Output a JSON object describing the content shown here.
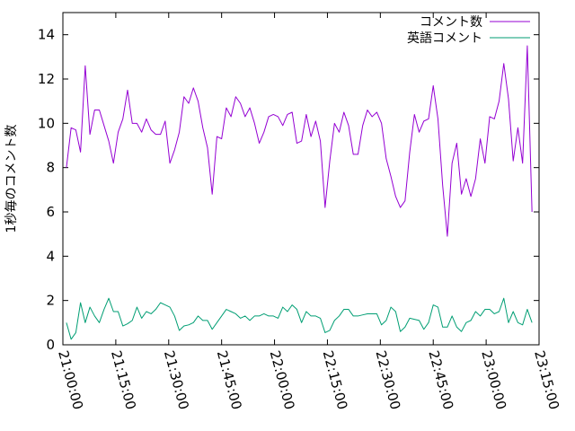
{
  "chart_data": {
    "type": "line",
    "ylabel": "1秒毎のコメント数",
    "ylim": [
      0,
      15
    ],
    "yticks": [
      "0",
      "2",
      "4",
      "6",
      "8",
      "10",
      "12",
      "14"
    ],
    "xlim": [
      "21:00:00",
      "23:15:00"
    ],
    "xticks": [
      "21:00:00",
      "21:15:00",
      "21:30:00",
      "21:45:00",
      "22:00:00",
      "22:15:00",
      "22:30:00",
      "22:45:00",
      "23:00:00",
      "23:15:00"
    ],
    "legend_position": "top-right",
    "series": [
      {
        "name": "コメント数",
        "color": "#9400d3",
        "values": [
          8.0,
          9.8,
          9.7,
          8.7,
          12.6,
          9.5,
          10.6,
          10.6,
          9.9,
          9.2,
          8.2,
          9.6,
          10.2,
          11.5,
          10.0,
          10.0,
          9.6,
          10.2,
          9.7,
          9.5,
          9.5,
          10.1,
          8.2,
          8.8,
          9.6,
          11.2,
          10.9,
          11.6,
          11.0,
          9.8,
          8.9,
          6.8,
          9.4,
          9.3,
          10.7,
          10.3,
          11.2,
          10.9,
          10.3,
          10.7,
          10.0,
          9.1,
          9.6,
          10.3,
          10.4,
          10.3,
          9.9,
          10.4,
          10.5,
          9.1,
          9.2,
          10.4,
          9.4,
          10.1,
          9.2,
          6.2,
          8.3,
          10.0,
          9.6,
          10.5,
          9.9,
          8.6,
          8.6,
          9.9,
          10.6,
          10.3,
          10.5,
          10.0,
          8.4,
          7.6,
          6.7,
          6.2,
          6.5,
          8.7,
          10.4,
          9.6,
          10.1,
          10.2,
          11.7,
          10.2,
          7.2,
          4.9,
          8.2,
          9.1,
          6.8,
          7.5,
          6.7,
          7.5,
          9.3,
          8.2,
          10.3,
          10.2,
          11.0,
          12.7,
          11.1,
          8.3,
          9.8,
          8.2,
          13.5,
          6.0
        ]
      },
      {
        "name": "英語コメント",
        "color": "#009e73",
        "values": [
          1.0,
          0.25,
          0.55,
          1.9,
          1.0,
          1.7,
          1.3,
          1.0,
          1.6,
          2.1,
          1.5,
          1.5,
          0.85,
          0.95,
          1.1,
          1.7,
          1.2,
          1.5,
          1.4,
          1.6,
          1.9,
          1.8,
          1.7,
          1.3,
          0.65,
          0.85,
          0.9,
          1.0,
          1.3,
          1.1,
          1.1,
          0.7,
          1.0,
          1.3,
          1.6,
          1.5,
          1.4,
          1.2,
          1.3,
          1.1,
          1.3,
          1.3,
          1.4,
          1.3,
          1.3,
          1.2,
          1.7,
          1.5,
          1.8,
          1.6,
          1.0,
          1.5,
          1.3,
          1.3,
          1.2,
          0.55,
          0.65,
          1.1,
          1.3,
          1.6,
          1.6,
          1.3,
          1.3,
          1.35,
          1.4,
          1.4,
          1.4,
          0.9,
          1.1,
          1.7,
          1.5,
          0.6,
          0.8,
          1.2,
          1.15,
          1.1,
          0.7,
          1.0,
          1.8,
          1.7,
          0.8,
          0.8,
          1.3,
          0.8,
          0.6,
          1.0,
          1.1,
          1.5,
          1.3,
          1.6,
          1.6,
          1.4,
          1.5,
          2.1,
          1.0,
          1.5,
          1.0,
          0.9,
          1.6,
          1.0
        ]
      }
    ]
  }
}
